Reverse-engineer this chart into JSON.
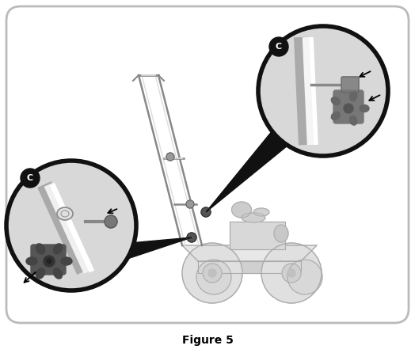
{
  "figure_label": "Figure 5",
  "bg": "#ffffff",
  "border_color": "#bbbbbb",
  "fig_width": 5.24,
  "fig_height": 4.46,
  "dpi": 100,
  "label_fontsize": 10,
  "circle_bg": "#d8d8d8",
  "circle_border": "#111111",
  "circle_lw": 4.0,
  "badge_bg": "#111111",
  "badge_fg": "#ffffff",
  "mower_lc": "#c0c0c0",
  "mower_oc": "#aaaaaa",
  "handle_oc": "#888888"
}
